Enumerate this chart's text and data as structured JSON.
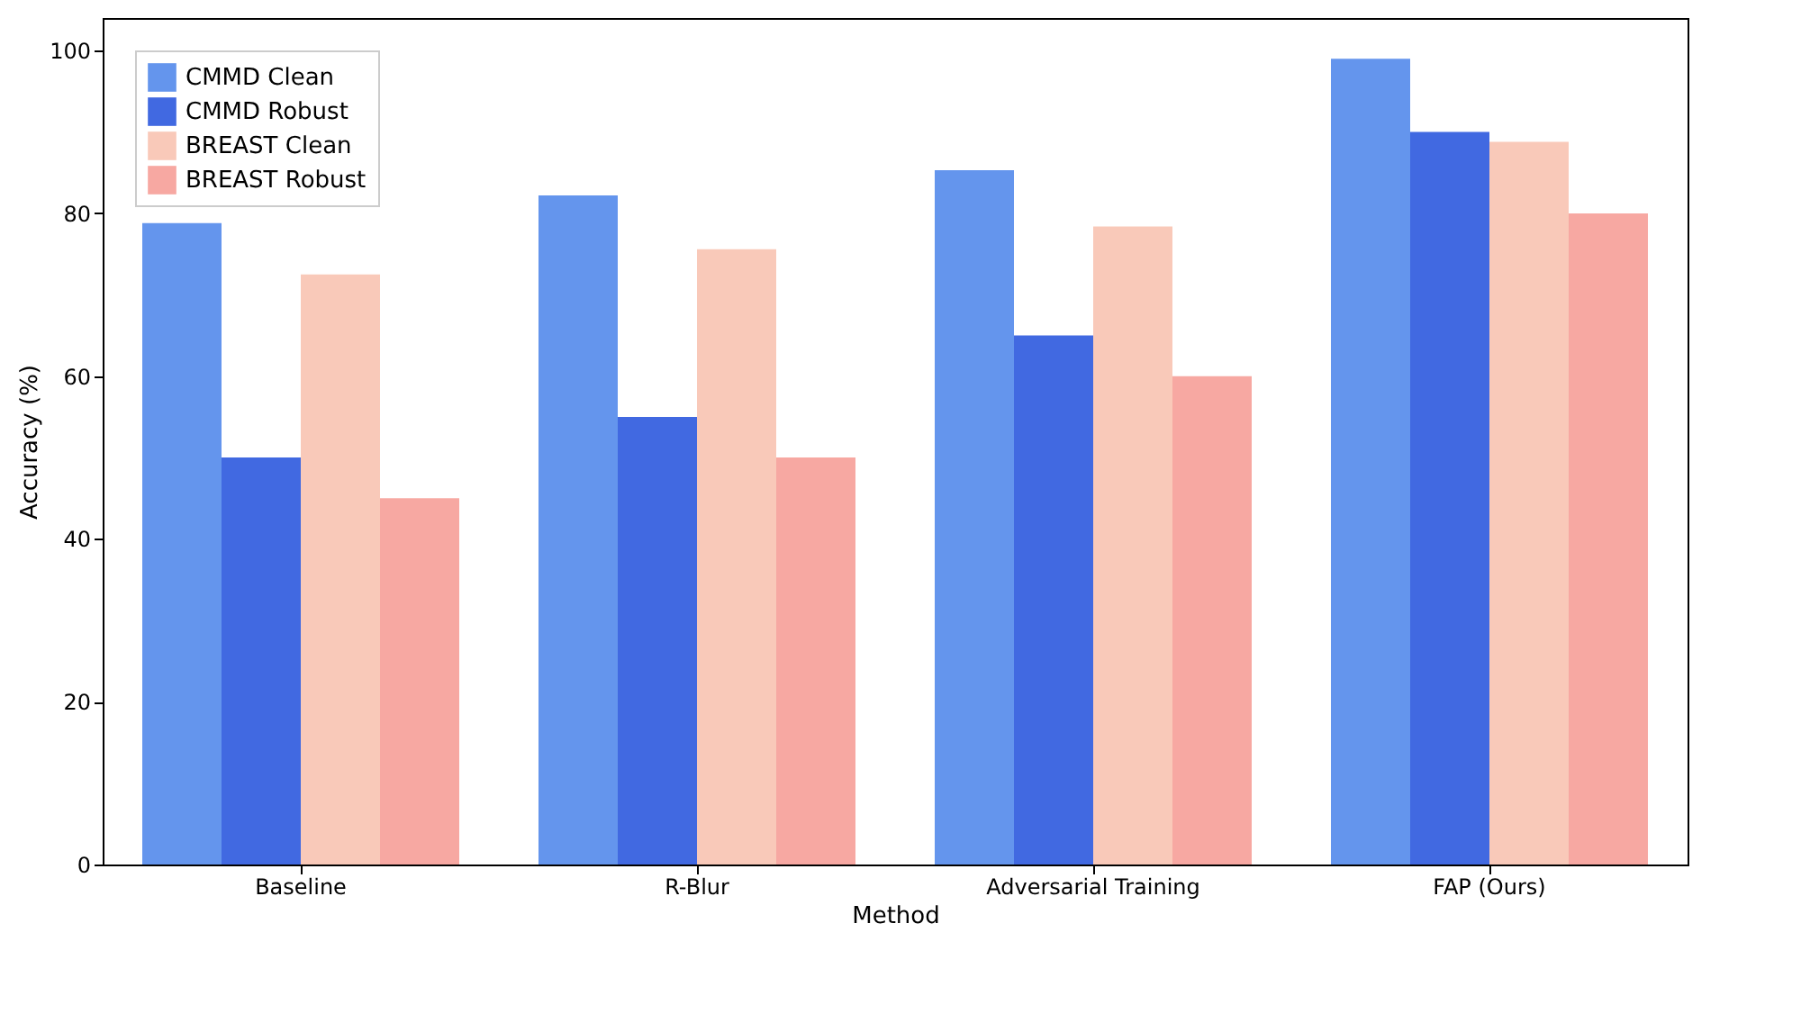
{
  "chart_data": {
    "type": "bar",
    "xlabel": "Method",
    "ylabel": "Accuracy (%)",
    "categories": [
      "Baseline",
      "R-Blur",
      "Adversarial Training",
      "FAP (Ours)"
    ],
    "series": [
      {
        "name": "CMMD Clean",
        "color": "#6495ed",
        "values": [
          78.8,
          82.2,
          85.3,
          99
        ]
      },
      {
        "name": "CMMD Robust",
        "color": "#4169e1",
        "values": [
          50,
          55,
          65,
          90
        ]
      },
      {
        "name": "BREAST Clean",
        "color": "#f9c9b9",
        "values": [
          72.5,
          75.6,
          78.4,
          88.8
        ]
      },
      {
        "name": "BREAST Robust",
        "color": "#f7a8a2",
        "values": [
          45,
          50,
          60,
          80
        ]
      }
    ],
    "ylim": [
      0,
      104
    ],
    "yticks": [
      0,
      20,
      40,
      60,
      80,
      100
    ],
    "grid": false,
    "legend": "top left"
  }
}
